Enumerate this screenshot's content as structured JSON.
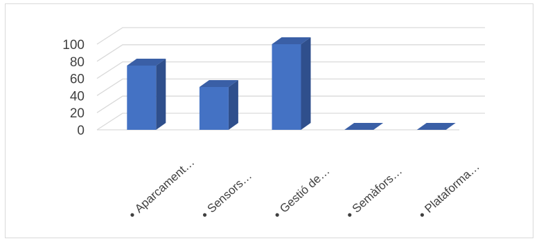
{
  "chart_data": {
    "type": "bar",
    "style": "3d-column",
    "categories": [
      "Aparcament…",
      "Sensors…",
      "Gestió de…",
      "Semàfors…",
      "Plataforma…"
    ],
    "values": [
      75,
      50,
      100,
      0,
      0
    ],
    "yticks": [
      0,
      20,
      40,
      60,
      80,
      100
    ],
    "ylim": [
      0,
      100
    ],
    "grid": true,
    "legend": "none",
    "title": "",
    "xlabel": "",
    "ylabel": "",
    "colors": {
      "front": "#4472c4",
      "side": "#2f4f8c",
      "top": "#3a5fa6",
      "grid": "#d9d9d9",
      "text": "#404040"
    }
  }
}
